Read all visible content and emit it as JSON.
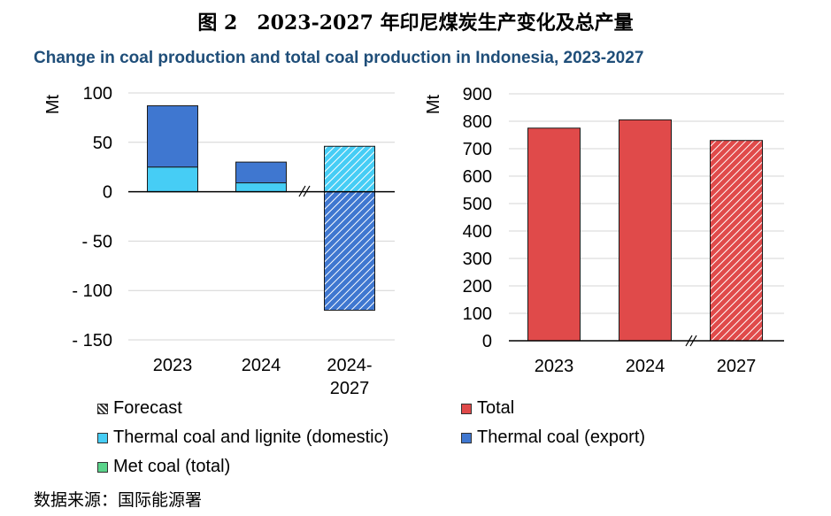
{
  "figure_title": "图 2　2023-2027 年印尼煤炭生产变化及总产量",
  "figure_subtitle": "Change in coal production and total coal production in Indonesia, 2023-2027",
  "source": "数据来源：国际能源署",
  "colors": {
    "thermal_export": "#3f77d0",
    "thermal_domestic": "#46cdf5",
    "met_coal": "#5ad38a",
    "total": "#e04a4a",
    "forecast_pattern": "#ffffff"
  },
  "legend": [
    {
      "label": "Forecast",
      "swatch": "forecast"
    },
    {
      "label": "Total",
      "swatch": "total"
    },
    {
      "label": "Thermal coal and lignite (domestic)",
      "swatch": "thermal_domestic"
    },
    {
      "label": "Thermal coal (export)",
      "swatch": "thermal_export"
    },
    {
      "label": "Met coal (total)",
      "swatch": "met_coal"
    }
  ],
  "chart_data": [
    {
      "type": "bar",
      "stacked": true,
      "ylabel": "Mt",
      "ylim": [
        -150,
        100
      ],
      "yticks": [
        100,
        50,
        0,
        -50,
        -100,
        -150
      ],
      "ytick_labels": [
        "100",
        "50",
        "0",
        "- 50",
        "- 100",
        "- 150"
      ],
      "categories": [
        "2023",
        "2024",
        "2024-2027"
      ],
      "forecast": [
        false,
        false,
        true
      ],
      "series": [
        {
          "name": "Thermal coal and lignite (domestic)",
          "values": [
            25,
            9,
            46
          ]
        },
        {
          "name": "Thermal coal (export)",
          "values": [
            62,
            21,
            -120
          ]
        },
        {
          "name": "Met coal (total)",
          "values": [
            0,
            0,
            0
          ]
        }
      ]
    },
    {
      "type": "bar",
      "ylabel": "Mt",
      "ylim": [
        0,
        900
      ],
      "yticks": [
        900,
        800,
        700,
        600,
        500,
        400,
        300,
        200,
        100,
        0
      ],
      "categories": [
        "2023",
        "2024",
        "2027"
      ],
      "forecast": [
        false,
        false,
        true
      ],
      "series": [
        {
          "name": "Total",
          "values": [
            775,
            805,
            730
          ]
        }
      ]
    }
  ]
}
